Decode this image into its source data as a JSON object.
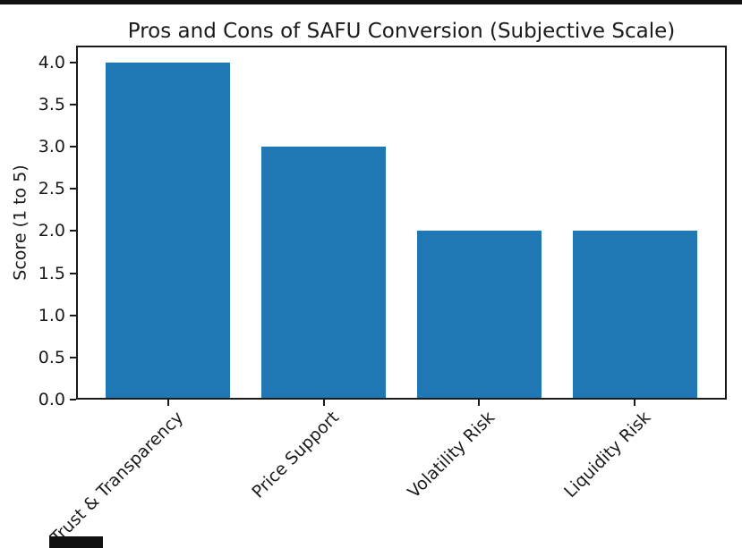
{
  "page": {
    "background_color": "#ffffff",
    "top_bar_color": "#111111",
    "bottom_box_color": "#111111",
    "axis_color": "#1a1a1a",
    "text_color": "#1a1a1a"
  },
  "chart_data": {
    "type": "bar",
    "title": "Pros and Cons of SAFU Conversion (Subjective Scale)",
    "xlabel": "",
    "ylabel": "Score (1 to 5)",
    "categories": [
      "Trust & Transparency",
      "Price Support",
      "Volatility Risk",
      "Liquidity Risk"
    ],
    "values": [
      4,
      3,
      2,
      2
    ],
    "bar_color": "#1f77b4",
    "ylim": [
      0,
      4.2
    ],
    "yticks": [
      0.0,
      0.5,
      1.0,
      1.5,
      2.0,
      2.5,
      3.0,
      3.5,
      4.0
    ],
    "ytick_labels": [
      "0.0",
      "0.5",
      "1.0",
      "1.5",
      "2.0",
      "2.5",
      "3.0",
      "3.5",
      "4.0"
    ],
    "x_label_rotation_deg": 45,
    "grid": false,
    "legend": false
  }
}
